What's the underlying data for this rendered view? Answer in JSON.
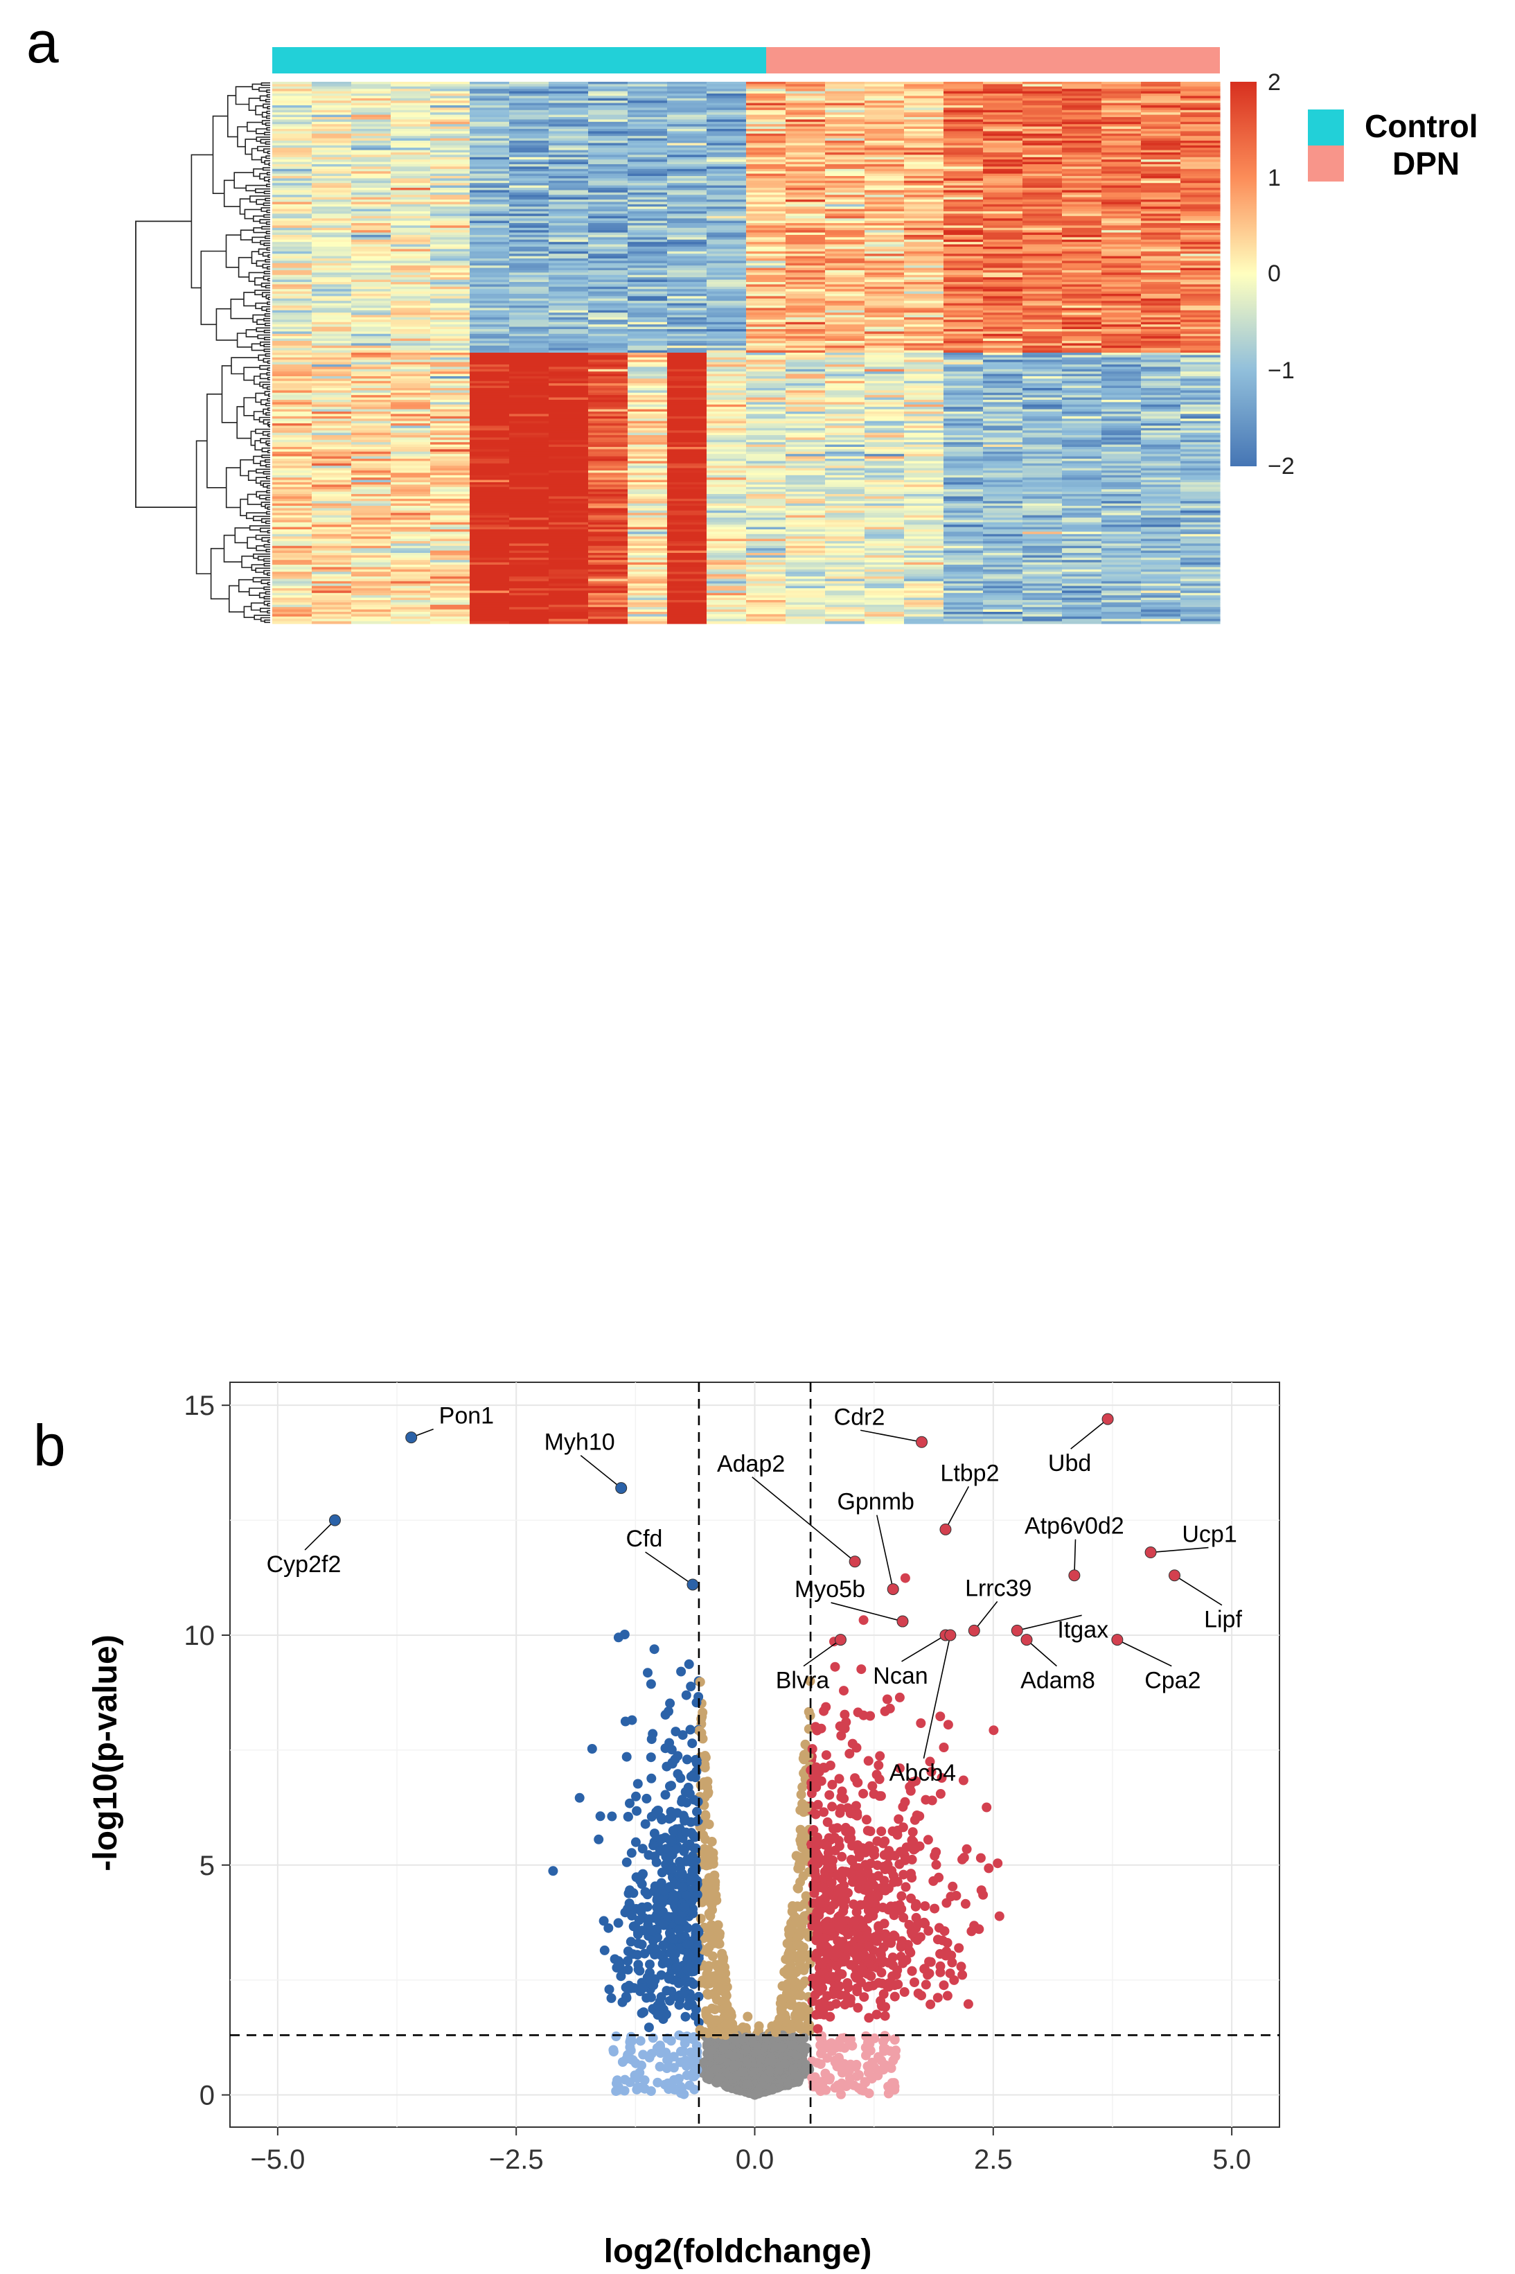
{
  "panel_a": {
    "letter": "a",
    "legend": [
      {
        "label": "Control",
        "color": "#22d0d8"
      },
      {
        "label": "DPN",
        "color": "#f8958a"
      }
    ],
    "colorbar_ticks": [
      "2",
      "1",
      "0",
      "−1",
      "−2"
    ],
    "colors": {
      "high": "#d7301f",
      "mid": "#ffffbf",
      "low": "#4575b4"
    }
  },
  "panel_b": {
    "letter": "b",
    "colors": {
      "down": "#2b62a8",
      "down_light": "#8fb4e3",
      "ns_fc": "#c9a46e",
      "ns": "#8f8f8f",
      "up": "#d3404f",
      "up_light": "#f0a0a8"
    }
  },
  "chart_data": {
    "type": "scatter",
    "title": "",
    "xlabel": "log2(foldchange)",
    "ylabel": "-log10(p-value)",
    "xlim": [
      -5.5,
      5.5
    ],
    "ylim": [
      -0.7,
      15.5
    ],
    "xticks": [
      "−5.0",
      "−2.5",
      "0.0",
      "2.5",
      "5.0"
    ],
    "yticks": [
      "0",
      "5",
      "10",
      "15"
    ],
    "thresholds": {
      "log2fc": [
        -0.585,
        0.585
      ],
      "neg_log10_p": 1.3
    },
    "labeled_genes": [
      {
        "name": "Pon1",
        "x": -3.6,
        "y": 14.3
      },
      {
        "name": "Cyp2f2",
        "x": -4.4,
        "y": 12.5
      },
      {
        "name": "Myh10",
        "x": -1.4,
        "y": 13.2
      },
      {
        "name": "Cfd",
        "x": -0.65,
        "y": 11.1
      },
      {
        "name": "Cdr2",
        "x": 1.75,
        "y": 14.2
      },
      {
        "name": "Ubd",
        "x": 3.7,
        "y": 14.7
      },
      {
        "name": "Ltbp2",
        "x": 2.0,
        "y": 12.3
      },
      {
        "name": "Adap2",
        "x": 1.05,
        "y": 11.6
      },
      {
        "name": "Gpnmb",
        "x": 1.45,
        "y": 11.0
      },
      {
        "name": "Atp6v0d2",
        "x": 3.35,
        "y": 11.3
      },
      {
        "name": "Ucp1",
        "x": 4.15,
        "y": 11.8
      },
      {
        "name": "Lipf",
        "x": 4.4,
        "y": 11.3
      },
      {
        "name": "Myo5b",
        "x": 1.55,
        "y": 10.3
      },
      {
        "name": "Lrrc39",
        "x": 2.3,
        "y": 10.1
      },
      {
        "name": "Itgax",
        "x": 2.75,
        "y": 10.1
      },
      {
        "name": "Blvra",
        "x": 0.9,
        "y": 9.9
      },
      {
        "name": "Ncan",
        "x": 2.0,
        "y": 10.0
      },
      {
        "name": "Adam8",
        "x": 2.85,
        "y": 9.9
      },
      {
        "name": "Cpa2",
        "x": 3.8,
        "y": 9.9
      },
      {
        "name": "Abcb4",
        "x": 2.05,
        "y": 10.0
      }
    ]
  }
}
